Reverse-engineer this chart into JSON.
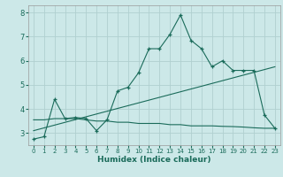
{
  "xlabel": "Humidex (Indice chaleur)",
  "background_color": "#cce8e8",
  "grid_color": "#b0d0d0",
  "line_color": "#1a6b5a",
  "xlim": [
    -0.5,
    23.5
  ],
  "ylim": [
    2.5,
    8.3
  ],
  "xticks": [
    0,
    1,
    2,
    3,
    4,
    5,
    6,
    7,
    8,
    9,
    10,
    11,
    12,
    13,
    14,
    15,
    16,
    17,
    18,
    19,
    20,
    21,
    22,
    23
  ],
  "yticks": [
    3,
    4,
    5,
    6,
    7,
    8
  ],
  "line1_x": [
    0,
    1,
    2,
    3,
    4,
    5,
    6,
    7,
    8,
    9,
    10,
    11,
    12,
    13,
    14,
    15,
    16,
    17,
    18,
    19,
    20,
    21,
    22,
    23
  ],
  "line1_y": [
    2.75,
    2.85,
    4.4,
    3.6,
    3.65,
    3.6,
    3.1,
    3.55,
    4.75,
    4.9,
    5.5,
    6.5,
    6.5,
    7.1,
    7.9,
    6.85,
    6.5,
    5.75,
    6.0,
    5.6,
    5.6,
    5.6,
    3.75,
    3.2
  ],
  "line2_x": [
    0,
    23
  ],
  "line2_y": [
    3.1,
    5.75
  ],
  "line3_x": [
    0,
    1,
    2,
    3,
    4,
    5,
    6,
    7,
    8,
    9,
    10,
    11,
    12,
    13,
    14,
    15,
    16,
    17,
    18,
    19,
    20,
    21,
    22,
    23
  ],
  "line3_y": [
    3.55,
    3.55,
    3.6,
    3.6,
    3.6,
    3.55,
    3.5,
    3.5,
    3.45,
    3.45,
    3.4,
    3.4,
    3.4,
    3.35,
    3.35,
    3.3,
    3.3,
    3.3,
    3.28,
    3.27,
    3.25,
    3.22,
    3.2,
    3.2
  ]
}
